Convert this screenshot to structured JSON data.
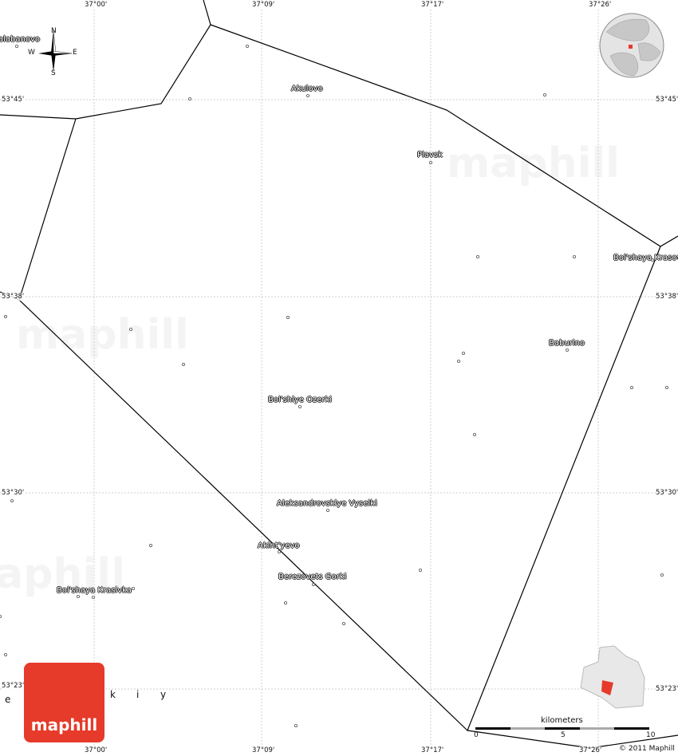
{
  "map": {
    "longitudes": [
      "37°00'",
      "37°09'",
      "37°17'",
      "37°26'"
    ],
    "latitudes": [
      "53°45'",
      "53°38'",
      "53°30'",
      "53°23'"
    ],
    "compass": {
      "n": "N",
      "s": "S",
      "e": "E",
      "w": "W"
    },
    "places": [
      {
        "name": "Akulovo"
      },
      {
        "name": "Plavsk"
      },
      {
        "name": "Bol'shaya Krasov"
      },
      {
        "name": "Baburino"
      },
      {
        "name": "Bol'shiye Ozerki"
      },
      {
        "name": "Aleksandrovskiye Vyselki"
      },
      {
        "name": "Akint'yevo"
      },
      {
        "name": "Berezovets Gorki"
      },
      {
        "name": "Bol'shaya Krasivka"
      },
      {
        "name": "alabanovo"
      }
    ],
    "region_letters": [
      "e",
      "k",
      "i",
      "y"
    ],
    "scale": {
      "unit": "kilometers",
      "ticks": [
        "0",
        "5",
        "10"
      ]
    },
    "copyright": "© 2011 Maphill",
    "logo": "maphill",
    "watermark": "maphill",
    "colors": {
      "accent": "#e63a2a",
      "boundary": "#000000",
      "grid": "#cccccc"
    }
  }
}
